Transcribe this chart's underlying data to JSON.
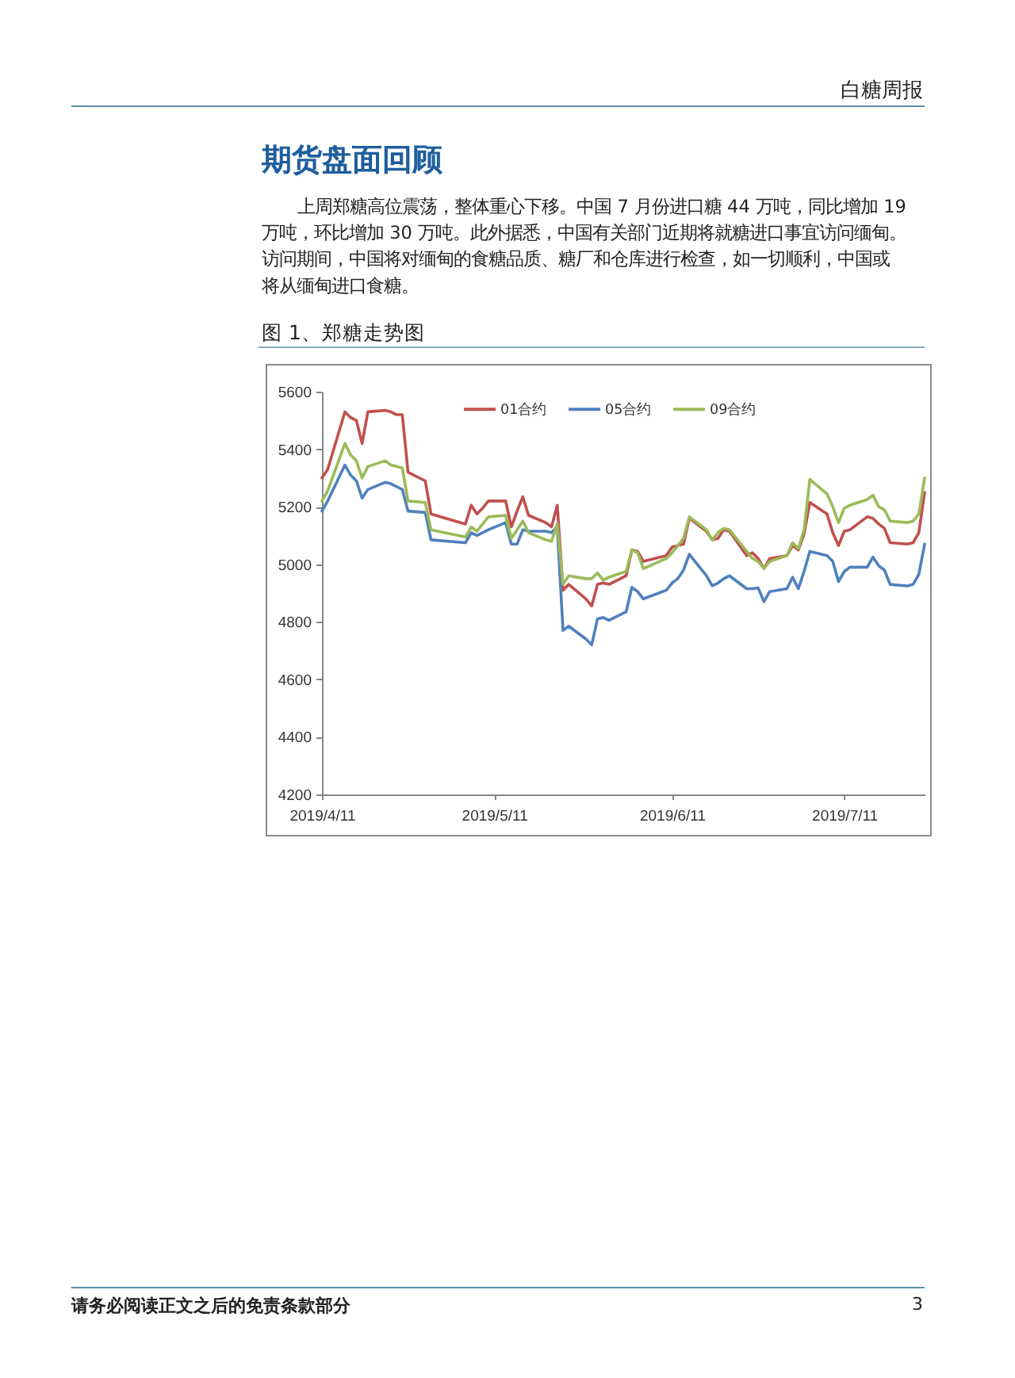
{
  "chart_data": {
    "type": "line",
    "title": "图 1、郑糖走势图",
    "annotations": [
      "白糖周报",
      "期货盘面回顾",
      "上周郑糖高位震荡，整体重心下移。中国 7 月份进口糖 44 万吨，同比增加 19 万吨，环比增加 30 万吨。此外据悉，中国有关部门近期将就糖进口事宜访问缅甸。访问期间，中国将对缅甸的食糖品质、糖厂和仓库进行检查，如一切顺利，中国或将从缅甸进口食糖。",
      "请务必阅读正文之后的免责条款部分",
      "3"
    ],
    "x": [
      "2019-04-11",
      "2019-04-12",
      "2019-04-15",
      "2019-04-16",
      "2019-04-17",
      "2019-04-18",
      "2019-04-19",
      "2019-04-22",
      "2019-04-23",
      "2019-04-24",
      "2019-04-25",
      "2019-04-26",
      "2019-04-29",
      "2019-04-30",
      "2019-05-06",
      "2019-05-07",
      "2019-05-08",
      "2019-05-09",
      "2019-05-10",
      "2019-05-13",
      "2019-05-14",
      "2019-05-15",
      "2019-05-16",
      "2019-05-17",
      "2019-05-20",
      "2019-05-21",
      "2019-05-22",
      "2019-05-23",
      "2019-05-24",
      "2019-05-27",
      "2019-05-28",
      "2019-05-29",
      "2019-05-30",
      "2019-05-31",
      "2019-06-03",
      "2019-06-04",
      "2019-06-05",
      "2019-06-06",
      "2019-06-10",
      "2019-06-11",
      "2019-06-12",
      "2019-06-13",
      "2019-06-14",
      "2019-06-17",
      "2019-06-18",
      "2019-06-19",
      "2019-06-20",
      "2019-06-21",
      "2019-06-24",
      "2019-06-25",
      "2019-06-26",
      "2019-06-27",
      "2019-06-28",
      "2019-07-01",
      "2019-07-02",
      "2019-07-03",
      "2019-07-04",
      "2019-07-05",
      "2019-07-08",
      "2019-07-09",
      "2019-07-10",
      "2019-07-11",
      "2019-07-12",
      "2019-07-15",
      "2019-07-16",
      "2019-07-17",
      "2019-07-18",
      "2019-07-19",
      "2019-07-22",
      "2019-07-23",
      "2019-07-24",
      "2019-07-25"
    ],
    "series": [
      {
        "name": "01合约",
        "color": "#c0504d",
        "values": [
          5300,
          5330,
          5530,
          5510,
          5500,
          5420,
          5530,
          5535,
          5530,
          5520,
          5520,
          5320,
          5290,
          5175,
          5140,
          5205,
          5175,
          5195,
          5220,
          5220,
          5130,
          5185,
          5235,
          5170,
          5145,
          5130,
          5205,
          4910,
          4930,
          4880,
          4855,
          4930,
          4935,
          4930,
          4960,
          5050,
          5045,
          5010,
          5030,
          5060,
          5065,
          5070,
          5160,
          5115,
          5085,
          5090,
          5120,
          5115,
          5030,
          5040,
          5020,
          4985,
          5020,
          5030,
          5065,
          5050,
          5105,
          5215,
          5175,
          5110,
          5065,
          5115,
          5120,
          5165,
          5160,
          5140,
          5125,
          5075,
          5070,
          5075,
          5110,
          5250
        ]
      },
      {
        "name": "05合约",
        "color": "#4f81bd",
        "values": [
          5185,
          5220,
          5345,
          5310,
          5290,
          5230,
          5260,
          5285,
          5280,
          5270,
          5260,
          5185,
          5180,
          5085,
          5075,
          5110,
          5100,
          5110,
          5120,
          5145,
          5070,
          5070,
          5120,
          5115,
          5115,
          5110,
          5130,
          4770,
          4785,
          4740,
          4720,
          4810,
          4815,
          4805,
          4835,
          4920,
          4905,
          4880,
          4910,
          4935,
          4950,
          4980,
          5035,
          4960,
          4925,
          4935,
          4950,
          4960,
          4915,
          4915,
          4918,
          4870,
          4905,
          4915,
          4955,
          4915,
          4975,
          5045,
          5030,
          5010,
          4940,
          4975,
          4990,
          4990,
          5025,
          4995,
          4980,
          4930,
          4925,
          4930,
          4965,
          5070
        ]
      },
      {
        "name": "09合约",
        "color": "#9bbb59",
        "values": [
          5220,
          5255,
          5420,
          5380,
          5360,
          5300,
          5340,
          5360,
          5345,
          5340,
          5335,
          5220,
          5215,
          5120,
          5095,
          5130,
          5115,
          5140,
          5165,
          5170,
          5090,
          5120,
          5150,
          5110,
          5085,
          5080,
          5140,
          4930,
          4960,
          4950,
          4950,
          4970,
          4945,
          4955,
          4975,
          5050,
          5040,
          4985,
          5020,
          5040,
          5065,
          5090,
          5165,
          5120,
          5085,
          5110,
          5125,
          5120,
          5045,
          5020,
          5010,
          4985,
          5010,
          5030,
          5075,
          5055,
          5120,
          5295,
          5245,
          5200,
          5145,
          5195,
          5205,
          5225,
          5240,
          5200,
          5190,
          5150,
          5145,
          5150,
          5175,
          5300
        ]
      }
    ],
    "xlim": [
      "2019-04-11",
      "2019-07-25"
    ],
    "xticks": [
      {
        "value": "2019-04-11",
        "label": "2019/4/11"
      },
      {
        "value": "2019-05-11",
        "label": "2019/5/11"
      },
      {
        "value": "2019-06-11",
        "label": "2019/6/11"
      },
      {
        "value": "2019-07-11",
        "label": "2019/7/11"
      }
    ],
    "ylim": [
      4200,
      5600
    ],
    "yticks": [
      4200,
      4400,
      4600,
      4800,
      5000,
      5200,
      5400,
      5600
    ],
    "grid": false,
    "legend": "top"
  }
}
